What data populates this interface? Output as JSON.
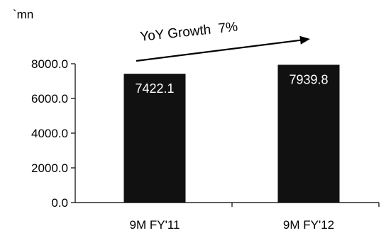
{
  "chart_data": {
    "type": "bar",
    "unit": "`mn",
    "categories": [
      "9M FY'11",
      "9M FY'12"
    ],
    "values": [
      7422.1,
      7939.8
    ],
    "value_labels": [
      "7422.1",
      "7939.8"
    ],
    "ylim": [
      0,
      8000
    ],
    "yticks": [
      0,
      2000,
      4000,
      6000,
      8000
    ],
    "ytick_labels": [
      "0.0",
      "2000.0",
      "4000.0",
      "6000.0",
      "8000.0"
    ],
    "annotation": "YoY Growth  7%",
    "grid": false,
    "legend": "none"
  },
  "colors": {
    "bar": "#111111",
    "axis": "#000000",
    "value_text": "#ffffff",
    "arrow": "#000000"
  }
}
